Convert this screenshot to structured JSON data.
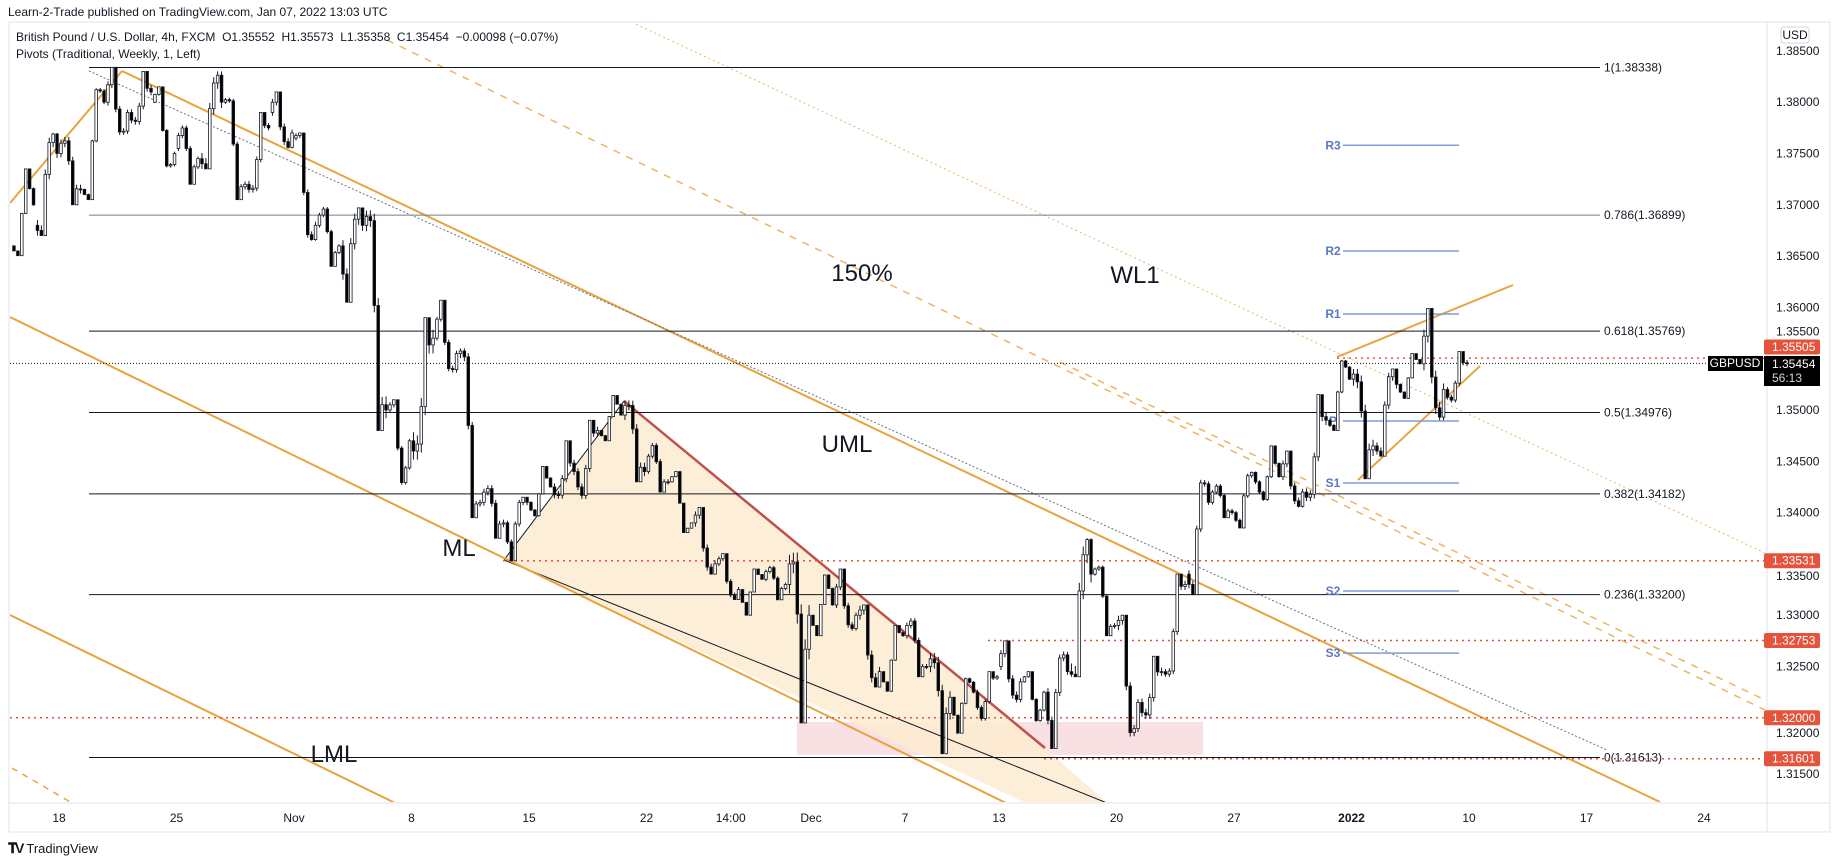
{
  "header": {
    "published": "Learn-2-Trade published on TradingView.com, Jan 07, 2022 13:03 UTC"
  },
  "legend": {
    "symbol_line": "British Pound / U.S. Dollar, 4h, FXCM",
    "open": "O1.35552",
    "high": "H1.35573",
    "low": "L1.35358",
    "close": "C1.35454",
    "change": "−0.00098 (−0.07%)",
    "indicator": "Pivots (Traditional, Weekly, 1, Left)"
  },
  "price_axis": {
    "currency": "USD",
    "ticks": [
      "1.31500",
      "1.32000",
      "1.32500",
      "1.33000",
      "1.33500",
      "1.34000",
      "1.34500",
      "1.35000",
      "1.35500",
      "1.36000",
      "1.36500",
      "1.37000",
      "1.37500",
      "1.38000",
      "1.38500"
    ]
  },
  "current_price": {
    "symbol": "GBPUSD",
    "price": "1.35454",
    "countdown": "56:13",
    "value": 1.35454
  },
  "alert_levels": [
    {
      "label": "1.35505",
      "value": 1.35505
    },
    {
      "label": "1.33531",
      "value": 1.33531
    },
    {
      "label": "1.32753",
      "value": 1.32753
    },
    {
      "label": "1.32000",
      "value": 1.32
    },
    {
      "label": "1.31601",
      "value": 1.31601
    }
  ],
  "fib_levels": [
    {
      "label": "1(1.38338)",
      "value": 1.38338
    },
    {
      "label": "0.786(1.36899)",
      "value": 1.36899
    },
    {
      "label": "0.618(1.35769)",
      "value": 1.35769
    },
    {
      "label": "0.5(1.34976)",
      "value": 1.34976
    },
    {
      "label": "0.382(1.34182)",
      "value": 1.34182
    },
    {
      "label": "0.236(1.33200)",
      "value": 1.332
    },
    {
      "label": "0(1.31613)",
      "value": 1.31613
    }
  ],
  "pivots": [
    {
      "label": "R3",
      "value": 1.3758
    },
    {
      "label": "R2",
      "value": 1.3655
    },
    {
      "label": "R1",
      "value": 1.35936
    },
    {
      "label": "P",
      "value": 1.34893
    },
    {
      "label": "S1",
      "value": 1.34288
    },
    {
      "label": "S2",
      "value": 1.33236
    },
    {
      "label": "S3",
      "value": 1.3263
    }
  ],
  "annotations": {
    "pct150": "150%",
    "wl1": "WL1",
    "uml": "UML",
    "ml": "ML",
    "lml": "LML"
  },
  "footer": {
    "brand": "TradingView"
  },
  "colors": {
    "up_body": "#ffffff",
    "down_body": "#000000",
    "pitchfork": "#e8a33d",
    "wedge_fill": "#fdebd0",
    "wedge_edge": "#c0504d",
    "support_zone": "#f8dadd",
    "pivot": "#7f9bd8",
    "alert": "#e5533d"
  },
  "chart_data": {
    "type": "candlestick",
    "title": "British Pound / U.S. Dollar, 4h, FXCM",
    "ylim": [
      1.312,
      1.3875
    ],
    "x_ticks": [
      {
        "label": "18",
        "t": "2021-10-18"
      },
      {
        "label": "25",
        "t": "2021-10-25"
      },
      {
        "label": "Nov",
        "t": "2021-11-01"
      },
      {
        "label": "8",
        "t": "2021-11-08"
      },
      {
        "label": "15",
        "t": "2021-11-15"
      },
      {
        "label": "22",
        "t": "2021-11-22"
      },
      {
        "label": "14:00",
        "t": "2021-11-25T14:00"
      },
      {
        "label": "Dec",
        "t": "2021-12-01"
      },
      {
        "label": "7",
        "t": "2021-12-07"
      },
      {
        "label": "13",
        "t": "2021-12-13"
      },
      {
        "label": "20",
        "t": "2021-12-20"
      },
      {
        "label": "27",
        "t": "2021-12-27"
      },
      {
        "label": "2022",
        "t": "2022-01-03"
      },
      {
        "label": "10",
        "t": "2022-01-10"
      },
      {
        "label": "17",
        "t": "2022-01-17"
      },
      {
        "label": "24",
        "t": "2022-01-24"
      }
    ],
    "ohlc_daily_approx": [
      [
        "2021-10-14",
        1.366,
        1.3735,
        1.365,
        1.37
      ],
      [
        "2021-10-15",
        1.368,
        1.377,
        1.367,
        1.375
      ],
      [
        "2021-10-18",
        1.375,
        1.377,
        1.37,
        1.3715
      ],
      [
        "2021-10-19",
        1.3715,
        1.3815,
        1.3705,
        1.38
      ],
      [
        "2021-10-20",
        1.38,
        1.3834,
        1.3765,
        1.379
      ],
      [
        "2021-10-21",
        1.379,
        1.383,
        1.3775,
        1.381
      ],
      [
        "2021-10-22",
        1.38,
        1.3815,
        1.3735,
        1.375
      ],
      [
        "2021-10-25",
        1.3755,
        1.378,
        1.372,
        1.3745
      ],
      [
        "2021-10-26",
        1.3745,
        1.383,
        1.3735,
        1.38
      ],
      [
        "2021-10-27",
        1.38,
        1.3805,
        1.3705,
        1.372
      ],
      [
        "2021-10-28",
        1.372,
        1.379,
        1.371,
        1.3775
      ],
      [
        "2021-10-29",
        1.379,
        1.381,
        1.3755,
        1.377
      ],
      [
        "2021-11-01",
        1.3765,
        1.377,
        1.3665,
        1.368
      ],
      [
        "2021-11-02",
        1.368,
        1.37,
        1.364,
        1.366
      ],
      [
        "2021-11-03",
        1.366,
        1.3697,
        1.3605,
        1.368
      ],
      [
        "2021-11-04",
        1.368,
        1.3697,
        1.348,
        1.35
      ],
      [
        "2021-11-05",
        1.35,
        1.351,
        1.3425,
        1.347
      ],
      [
        "2021-11-08",
        1.347,
        1.359,
        1.345,
        1.357
      ],
      [
        "2021-11-09",
        1.357,
        1.3607,
        1.3535,
        1.3555
      ],
      [
        "2021-11-10",
        1.3555,
        1.356,
        1.3395,
        1.341
      ],
      [
        "2021-11-11",
        1.341,
        1.343,
        1.3375,
        1.339
      ],
      [
        "2021-11-12",
        1.339,
        1.3415,
        1.3353,
        1.341
      ],
      [
        "2021-11-15",
        1.341,
        1.3445,
        1.3395,
        1.3425
      ],
      [
        "2021-11-16",
        1.3425,
        1.347,
        1.341,
        1.344
      ],
      [
        "2021-11-17",
        1.344,
        1.349,
        1.341,
        1.348
      ],
      [
        "2021-11-18",
        1.348,
        1.3515,
        1.347,
        1.3495
      ],
      [
        "2021-11-19",
        1.3495,
        1.3514,
        1.343,
        1.344
      ],
      [
        "2021-11-22",
        1.344,
        1.347,
        1.342,
        1.343
      ],
      [
        "2021-11-23",
        1.343,
        1.344,
        1.338,
        1.339
      ],
      [
        "2021-11-24",
        1.339,
        1.3405,
        1.334,
        1.335
      ],
      [
        "2021-11-25",
        1.335,
        1.336,
        1.3315,
        1.3325
      ],
      [
        "2021-11-26",
        1.3325,
        1.3345,
        1.33,
        1.3335
      ],
      [
        "2021-11-29",
        1.3335,
        1.335,
        1.3315,
        1.333
      ],
      [
        "2021-11-30",
        1.333,
        1.337,
        1.3195,
        1.33
      ],
      [
        "2021-12-01",
        1.33,
        1.334,
        1.328,
        1.331
      ],
      [
        "2021-12-02",
        1.331,
        1.3345,
        1.3285,
        1.33
      ],
      [
        "2021-12-03",
        1.33,
        1.331,
        1.323,
        1.3245
      ],
      [
        "2021-12-06",
        1.3245,
        1.329,
        1.3225,
        1.328
      ],
      [
        "2021-12-07",
        1.328,
        1.33,
        1.324,
        1.325
      ],
      [
        "2021-12-08",
        1.325,
        1.3265,
        1.3165,
        1.322
      ],
      [
        "2021-12-09",
        1.322,
        1.324,
        1.3185,
        1.3225
      ],
      [
        "2021-12-10",
        1.3225,
        1.3245,
        1.3195,
        1.324
      ],
      [
        "2021-12-13",
        1.325,
        1.3275,
        1.3215,
        1.3235
      ],
      [
        "2021-12-14",
        1.3235,
        1.3245,
        1.3195,
        1.3225
      ],
      [
        "2021-12-15",
        1.3225,
        1.3265,
        1.317,
        1.3245
      ],
      [
        "2021-12-16",
        1.3245,
        1.3375,
        1.324,
        1.334
      ],
      [
        "2021-12-17",
        1.334,
        1.335,
        1.328,
        1.329
      ],
      [
        "2021-12-20",
        1.329,
        1.33,
        1.3178,
        1.3215
      ],
      [
        "2021-12-21",
        1.3215,
        1.326,
        1.3195,
        1.3245
      ],
      [
        "2021-12-22",
        1.3245,
        1.334,
        1.324,
        1.333
      ],
      [
        "2021-12-23",
        1.334,
        1.3435,
        1.332,
        1.341
      ],
      [
        "2021-12-24",
        1.341,
        1.343,
        1.3395,
        1.34
      ],
      [
        "2021-12-27",
        1.34,
        1.344,
        1.3385,
        1.343
      ],
      [
        "2021-12-28",
        1.343,
        1.3465,
        1.341,
        1.3435
      ],
      [
        "2021-12-29",
        1.3435,
        1.346,
        1.3405,
        1.342
      ],
      [
        "2021-12-30",
        1.342,
        1.3515,
        1.341,
        1.349
      ],
      [
        "2021-12-31",
        1.349,
        1.355,
        1.348,
        1.353
      ],
      [
        "2022-01-03",
        1.353,
        1.354,
        1.3433,
        1.3465
      ],
      [
        "2022-01-04",
        1.3465,
        1.354,
        1.3455,
        1.3525
      ],
      [
        "2022-01-05",
        1.3525,
        1.3555,
        1.351,
        1.3545
      ],
      [
        "2022-01-06",
        1.3545,
        1.3599,
        1.349,
        1.352
      ],
      [
        "2022-01-07",
        1.352,
        1.3557,
        1.3505,
        1.35454
      ]
    ]
  }
}
